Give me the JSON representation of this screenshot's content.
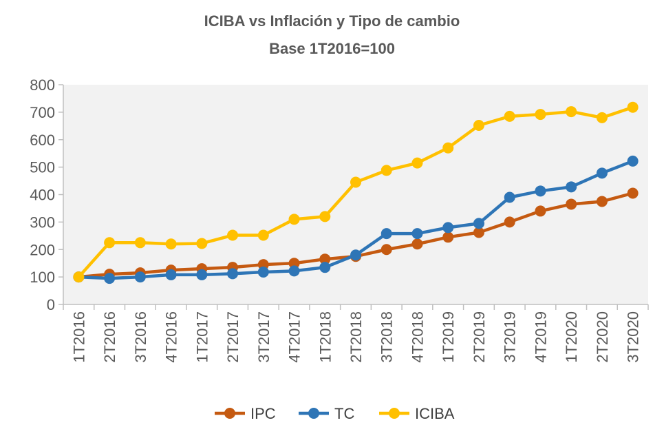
{
  "chart_data": {
    "type": "line",
    "title": "ICIBA vs Inflación y Tipo de cambio",
    "subtitle": "Base 1T2016=100",
    "categories": [
      "1T2016",
      "2T2016",
      "3T2016",
      "4T2016",
      "1T2017",
      "2T2017",
      "3T2017",
      "4T2017",
      "1T2018",
      "2T2018",
      "3T2018",
      "4T2018",
      "1T2019",
      "2T2019",
      "3T2019",
      "4T2019",
      "1T2020",
      "2T2020",
      "3T2020"
    ],
    "yticks": [
      "0",
      "100",
      "200",
      "300",
      "400",
      "500",
      "600",
      "700",
      "800"
    ],
    "ylim": [
      0,
      800
    ],
    "grid": false,
    "legend_position": "bottom",
    "series": [
      {
        "name": "IPC",
        "color": "#C55A11",
        "values": [
          100,
          110,
          115,
          125,
          130,
          135,
          145,
          150,
          165,
          175,
          200,
          220,
          245,
          262,
          300,
          340,
          365,
          375,
          405
        ]
      },
      {
        "name": "TC",
        "color": "#2E75B6",
        "values": [
          100,
          95,
          100,
          108,
          108,
          112,
          118,
          122,
          135,
          180,
          258,
          258,
          280,
          295,
          390,
          413,
          428,
          478,
          522
        ]
      },
      {
        "name": "ICIBA",
        "color": "#FFC000",
        "values": [
          100,
          225,
          225,
          220,
          222,
          252,
          252,
          310,
          320,
          445,
          488,
          515,
          570,
          652,
          685,
          692,
          702,
          680,
          718
        ]
      }
    ]
  }
}
